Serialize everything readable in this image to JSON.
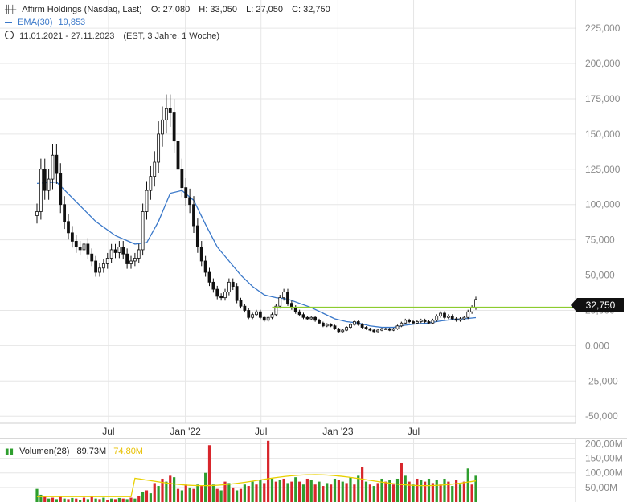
{
  "header": {
    "instrument": "Affirm Holdings (Nasdaq, Last)",
    "open_label": "O:",
    "open": "27,080",
    "high_label": "H:",
    "high": "33,050",
    "low_label": "L:",
    "low": "27,050",
    "close_label": "C:",
    "close": "32,750",
    "ema_label": "EMA(30)",
    "ema_value": "19,853",
    "range": "11.01.2021 - 27.11.2023",
    "range_detail": "(EST, 3 Jahre, 1 Woche)",
    "price_tag": "32,750"
  },
  "volume_legend": {
    "label": "Volumen(28)",
    "value": "89,73M",
    "avg": "74,80M"
  },
  "colors": {
    "up": "#2e9e2e",
    "down": "#d8262c",
    "candle": "#111111",
    "ema": "#3a78c9",
    "resistance": "#8ccc2e",
    "vol_avg": "#e8d000",
    "grid": "#e6e6e6",
    "axis_text": "#8a8a8a",
    "tag_bg": "#111111"
  },
  "chart_data": [
    {
      "type": "candlestick",
      "x_start": "2021-01-11",
      "x_end": "2023-11-27",
      "interval": "1 week",
      "xticks": [
        {
          "label": "Jul",
          "date": "2021-07-01"
        },
        {
          "label": "Jan '22",
          "date": "2022-01-01"
        },
        {
          "label": "Jul",
          "date": "2022-07-01"
        },
        {
          "label": "Jan '23",
          "date": "2023-01-01"
        },
        {
          "label": "Jul",
          "date": "2023-07-01"
        }
      ],
      "yticks": [
        225000,
        200000,
        175000,
        150000,
        125000,
        100000,
        75000,
        50000,
        25000,
        0,
        -25000,
        -50000
      ],
      "ytick_labels": [
        "225,000",
        "200,000",
        "175,000",
        "150,000",
        "125,000",
        "100,000",
        "75,000",
        "50,000",
        "25,000",
        "0,000",
        "-25,000",
        "-50,000"
      ],
      "ylim": [
        -55000,
        245000
      ],
      "close_series": [
        [
          0,
          95000
        ],
        [
          1,
          125000
        ],
        [
          2,
          110000
        ],
        [
          3,
          118000
        ],
        [
          4,
          135000
        ],
        [
          5,
          122000
        ],
        [
          6,
          100000
        ],
        [
          7,
          88000
        ],
        [
          8,
          80000
        ],
        [
          9,
          74000
        ],
        [
          10,
          70000
        ],
        [
          11,
          68000
        ],
        [
          12,
          72000
        ],
        [
          13,
          65000
        ],
        [
          14,
          60000
        ],
        [
          15,
          52000
        ],
        [
          16,
          55000
        ],
        [
          17,
          58000
        ],
        [
          18,
          62000
        ],
        [
          19,
          68000
        ],
        [
          20,
          66000
        ],
        [
          21,
          70000
        ],
        [
          22,
          65000
        ],
        [
          23,
          58000
        ],
        [
          24,
          60000
        ],
        [
          25,
          62000
        ],
        [
          26,
          68000
        ],
        [
          27,
          95000
        ],
        [
          28,
          110000
        ],
        [
          29,
          120000
        ],
        [
          30,
          130000
        ],
        [
          31,
          150000
        ],
        [
          32,
          160000
        ],
        [
          33,
          168000
        ],
        [
          34,
          165000
        ],
        [
          35,
          145000
        ],
        [
          36,
          125000
        ],
        [
          37,
          112000
        ],
        [
          38,
          105000
        ],
        [
          39,
          100000
        ],
        [
          40,
          85000
        ],
        [
          41,
          70000
        ],
        [
          42,
          60000
        ],
        [
          43,
          52000
        ],
        [
          44,
          45000
        ],
        [
          45,
          40000
        ],
        [
          46,
          35000
        ],
        [
          47,
          34000
        ],
        [
          48,
          38000
        ],
        [
          49,
          45000
        ],
        [
          50,
          42000
        ],
        [
          51,
          32000
        ],
        [
          52,
          28000
        ],
        [
          53,
          25000
        ],
        [
          54,
          20000
        ],
        [
          55,
          22000
        ],
        [
          56,
          24000
        ],
        [
          57,
          20000
        ],
        [
          58,
          18000
        ],
        [
          59,
          20000
        ],
        [
          60,
          22000
        ],
        [
          61,
          28000
        ],
        [
          62,
          34000
        ],
        [
          63,
          38000
        ],
        [
          64,
          30000
        ],
        [
          65,
          27000
        ],
        [
          66,
          24000
        ],
        [
          67,
          22000
        ],
        [
          68,
          20000
        ],
        [
          69,
          19000
        ],
        [
          70,
          20000
        ],
        [
          71,
          18000
        ],
        [
          72,
          16000
        ],
        [
          73,
          14000
        ],
        [
          74,
          15000
        ],
        [
          75,
          14000
        ],
        [
          76,
          12000
        ],
        [
          77,
          10000
        ],
        [
          78,
          11000
        ],
        [
          79,
          13000
        ],
        [
          80,
          15000
        ],
        [
          81,
          17000
        ],
        [
          82,
          15000
        ],
        [
          83,
          13000
        ],
        [
          84,
          12000
        ],
        [
          85,
          11000
        ],
        [
          86,
          10000
        ],
        [
          87,
          11000
        ],
        [
          88,
          12000
        ],
        [
          89,
          12000
        ],
        [
          90,
          11000
        ],
        [
          91,
          12000
        ],
        [
          92,
          14000
        ],
        [
          93,
          16000
        ],
        [
          94,
          18000
        ],
        [
          95,
          17000
        ],
        [
          96,
          16000
        ],
        [
          97,
          17000
        ],
        [
          98,
          18000
        ],
        [
          99,
          17000
        ],
        [
          100,
          16000
        ],
        [
          101,
          18000
        ],
        [
          102,
          21000
        ],
        [
          103,
          23000
        ],
        [
          104,
          20000
        ],
        [
          105,
          21000
        ],
        [
          106,
          19000
        ],
        [
          107,
          18000
        ],
        [
          108,
          19000
        ],
        [
          109,
          20000
        ],
        [
          110,
          24000
        ],
        [
          111,
          27000
        ],
        [
          112,
          32750
        ]
      ],
      "ema_series": [
        [
          0,
          115000
        ],
        [
          5,
          116000
        ],
        [
          10,
          102000
        ],
        [
          15,
          88000
        ],
        [
          20,
          78000
        ],
        [
          25,
          72000
        ],
        [
          28,
          73000
        ],
        [
          31,
          88000
        ],
        [
          34,
          108000
        ],
        [
          37,
          110000
        ],
        [
          40,
          103000
        ],
        [
          43,
          86000
        ],
        [
          46,
          70000
        ],
        [
          49,
          60000
        ],
        [
          52,
          50000
        ],
        [
          55,
          42000
        ],
        [
          58,
          36000
        ],
        [
          61,
          34000
        ],
        [
          64,
          33000
        ],
        [
          67,
          30000
        ],
        [
          70,
          27000
        ],
        [
          73,
          23000
        ],
        [
          76,
          19000
        ],
        [
          79,
          17000
        ],
        [
          82,
          16000
        ],
        [
          85,
          14000
        ],
        [
          88,
          13000
        ],
        [
          91,
          13000
        ],
        [
          94,
          14500
        ],
        [
          97,
          15500
        ],
        [
          100,
          16000
        ],
        [
          103,
          17500
        ],
        [
          106,
          18500
        ],
        [
          109,
          19000
        ],
        [
          112,
          19853
        ]
      ],
      "resistance_level": 27000,
      "resistance_from_index": 60,
      "last_price": 32750
    },
    {
      "type": "bar",
      "name": "Volumen(28)",
      "yticks": [
        200000000,
        150000000,
        100000000,
        50000000
      ],
      "ytick_labels": [
        "200,00M",
        "150,00M",
        "100,00M",
        "50,00M"
      ],
      "ylim": [
        0,
        215000000
      ],
      "values": [
        [
          0,
          45,
          1
        ],
        [
          1,
          25,
          1
        ],
        [
          2,
          18,
          0
        ],
        [
          3,
          12,
          1
        ],
        [
          4,
          15,
          0
        ],
        [
          5,
          10,
          1
        ],
        [
          6,
          20,
          0
        ],
        [
          7,
          12,
          1
        ],
        [
          8,
          10,
          0
        ],
        [
          9,
          14,
          1
        ],
        [
          10,
          12,
          0
        ],
        [
          11,
          8,
          1
        ],
        [
          12,
          15,
          0
        ],
        [
          13,
          10,
          1
        ],
        [
          14,
          18,
          0
        ],
        [
          15,
          12,
          1
        ],
        [
          16,
          10,
          0
        ],
        [
          17,
          15,
          1
        ],
        [
          18,
          8,
          0
        ],
        [
          19,
          12,
          1
        ],
        [
          20,
          10,
          0
        ],
        [
          21,
          14,
          1
        ],
        [
          22,
          12,
          0
        ],
        [
          23,
          10,
          1
        ],
        [
          24,
          15,
          0
        ],
        [
          25,
          12,
          1
        ],
        [
          26,
          20,
          0
        ],
        [
          27,
          35,
          1
        ],
        [
          28,
          40,
          0
        ],
        [
          29,
          30,
          1
        ],
        [
          30,
          65,
          0
        ],
        [
          31,
          55,
          1
        ],
        [
          32,
          80,
          0
        ],
        [
          33,
          70,
          1
        ],
        [
          34,
          90,
          0
        ],
        [
          35,
          85,
          1
        ],
        [
          36,
          45,
          0
        ],
        [
          37,
          40,
          1
        ],
        [
          38,
          60,
          0
        ],
        [
          39,
          50,
          1
        ],
        [
          40,
          45,
          0
        ],
        [
          41,
          60,
          1
        ],
        [
          42,
          55,
          0
        ],
        [
          43,
          100,
          1
        ],
        [
          44,
          195,
          0
        ],
        [
          45,
          60,
          1
        ],
        [
          46,
          45,
          0
        ],
        [
          47,
          40,
          1
        ],
        [
          48,
          70,
          0
        ],
        [
          49,
          65,
          1
        ],
        [
          50,
          50,
          0
        ],
        [
          51,
          40,
          1
        ],
        [
          52,
          45,
          0
        ],
        [
          53,
          60,
          1
        ],
        [
          54,
          55,
          0
        ],
        [
          55,
          70,
          1
        ],
        [
          56,
          60,
          0
        ],
        [
          57,
          75,
          1
        ],
        [
          58,
          65,
          0
        ],
        [
          59,
          210,
          0
        ],
        [
          60,
          80,
          1
        ],
        [
          61,
          70,
          0
        ],
        [
          62,
          75,
          1
        ],
        [
          63,
          80,
          0
        ],
        [
          64,
          65,
          1
        ],
        [
          65,
          70,
          0
        ],
        [
          66,
          85,
          1
        ],
        [
          67,
          70,
          0
        ],
        [
          68,
          60,
          1
        ],
        [
          69,
          80,
          0
        ],
        [
          70,
          75,
          1
        ],
        [
          71,
          60,
          0
        ],
        [
          72,
          70,
          1
        ],
        [
          73,
          55,
          0
        ],
        [
          74,
          65,
          1
        ],
        [
          75,
          60,
          0
        ],
        [
          76,
          80,
          1
        ],
        [
          77,
          75,
          0
        ],
        [
          78,
          70,
          1
        ],
        [
          79,
          65,
          0
        ],
        [
          80,
          85,
          1
        ],
        [
          81,
          60,
          0
        ],
        [
          82,
          90,
          1
        ],
        [
          83,
          120,
          0
        ],
        [
          84,
          70,
          1
        ],
        [
          85,
          60,
          0
        ],
        [
          86,
          55,
          1
        ],
        [
          87,
          65,
          0
        ],
        [
          88,
          80,
          1
        ],
        [
          89,
          70,
          0
        ],
        [
          90,
          75,
          1
        ],
        [
          91,
          60,
          0
        ],
        [
          92,
          80,
          1
        ],
        [
          93,
          135,
          0
        ],
        [
          94,
          90,
          1
        ],
        [
          95,
          70,
          0
        ],
        [
          96,
          60,
          1
        ],
        [
          97,
          80,
          0
        ],
        [
          98,
          75,
          1
        ],
        [
          99,
          70,
          0
        ],
        [
          100,
          80,
          1
        ],
        [
          101,
          65,
          0
        ],
        [
          102,
          75,
          1
        ],
        [
          103,
          60,
          0
        ],
        [
          104,
          80,
          1
        ],
        [
          105,
          70,
          0
        ],
        [
          106,
          55,
          1
        ],
        [
          107,
          75,
          0
        ],
        [
          108,
          60,
          1
        ],
        [
          109,
          70,
          0
        ],
        [
          110,
          115,
          1
        ],
        [
          111,
          60,
          0
        ],
        [
          112,
          90,
          1
        ]
      ],
      "avg_line": 74800000
    }
  ]
}
